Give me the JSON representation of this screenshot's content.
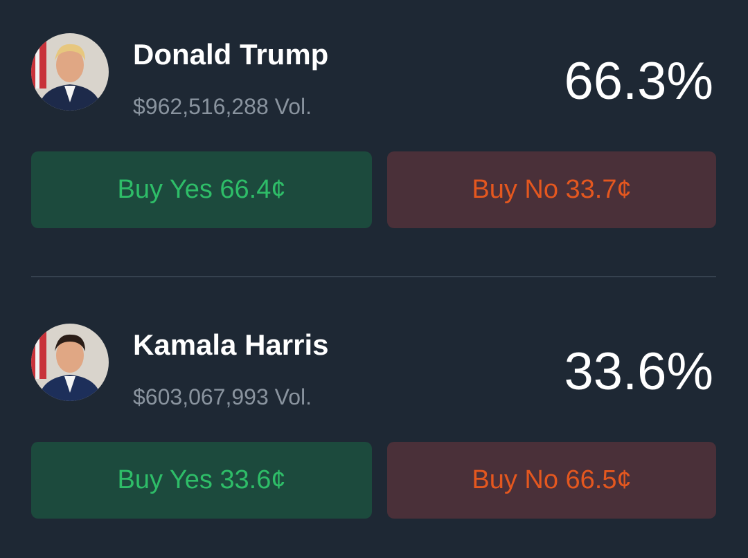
{
  "markets": [
    {
      "name": "Donald Trump",
      "volume": "$962,516,288 Vol.",
      "probability": "66.3%",
      "buy_yes": "Buy Yes 66.4¢",
      "buy_no": "Buy No 33.7¢"
    },
    {
      "name": "Kamala Harris",
      "volume": "$603,067,993 Vol.",
      "probability": "33.6%",
      "buy_yes": "Buy Yes 33.6¢",
      "buy_no": "Buy No 66.5¢"
    }
  ]
}
